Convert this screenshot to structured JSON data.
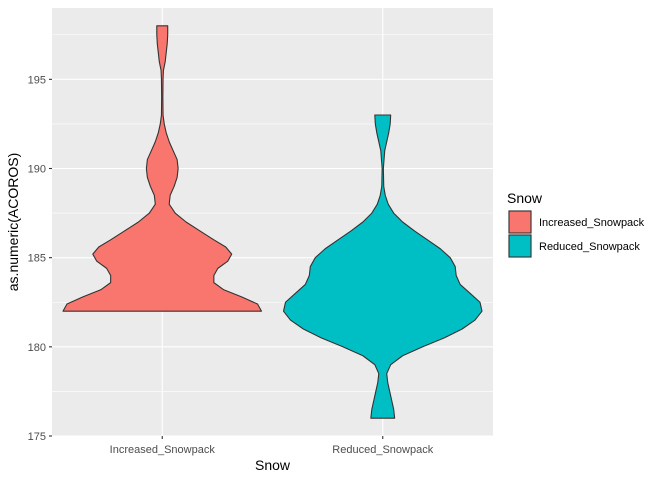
{
  "chart_data": {
    "type": "violin",
    "xlabel": "Snow",
    "ylabel": "as.numeric(ACOROS)",
    "ylim": [
      175,
      199
    ],
    "y_ticks": [
      175,
      180,
      185,
      190,
      195
    ],
    "y_tick_labels": [
      "175",
      "180",
      "185",
      "190",
      "195"
    ],
    "categories": [
      "Increased_Snowpack",
      "Reduced_Snowpack"
    ],
    "grid": true,
    "legend": {
      "title": "Snow",
      "position": "right",
      "entries": [
        "Increased_Snowpack",
        "Reduced_Snowpack"
      ]
    },
    "colors": {
      "Increased_Snowpack": "#F8766D",
      "Reduced_Snowpack": "#00BFC4",
      "panel": "#EBEBEB",
      "grid": "#FFFFFF"
    },
    "series": [
      {
        "category": "Increased_Snowpack",
        "min": 182,
        "max": 198,
        "profile": [
          [
            182.0,
            1.0
          ],
          [
            182.4,
            0.96
          ],
          [
            182.8,
            0.8
          ],
          [
            183.2,
            0.62
          ],
          [
            183.6,
            0.52
          ],
          [
            184.0,
            0.52
          ],
          [
            184.4,
            0.56
          ],
          [
            184.8,
            0.66
          ],
          [
            185.2,
            0.7
          ],
          [
            185.6,
            0.64
          ],
          [
            186.0,
            0.52
          ],
          [
            186.5,
            0.38
          ],
          [
            187.0,
            0.24
          ],
          [
            187.5,
            0.13
          ],
          [
            188.0,
            0.07
          ],
          [
            188.5,
            0.08
          ],
          [
            189.0,
            0.12
          ],
          [
            189.5,
            0.15
          ],
          [
            190.0,
            0.16
          ],
          [
            190.5,
            0.15
          ],
          [
            191.0,
            0.11
          ],
          [
            191.5,
            0.07
          ],
          [
            192.0,
            0.04
          ],
          [
            192.5,
            0.02
          ],
          [
            193.0,
            0.008
          ],
          [
            194.0,
            0.006
          ],
          [
            195.0,
            0.008
          ],
          [
            195.5,
            0.012
          ],
          [
            196.0,
            0.03
          ],
          [
            196.5,
            0.04
          ],
          [
            197.0,
            0.05
          ],
          [
            197.5,
            0.055
          ],
          [
            198.0,
            0.055
          ]
        ]
      },
      {
        "category": "Reduced_Snowpack",
        "min": 176,
        "max": 193,
        "profile": [
          [
            176.0,
            0.12
          ],
          [
            176.5,
            0.11
          ],
          [
            177.0,
            0.09
          ],
          [
            177.5,
            0.07
          ],
          [
            178.0,
            0.05
          ],
          [
            178.5,
            0.04
          ],
          [
            179.0,
            0.08
          ],
          [
            179.5,
            0.2
          ],
          [
            180.0,
            0.4
          ],
          [
            180.5,
            0.62
          ],
          [
            181.0,
            0.8
          ],
          [
            181.5,
            0.93
          ],
          [
            182.0,
            1.0
          ],
          [
            182.5,
            0.98
          ],
          [
            183.0,
            0.88
          ],
          [
            183.5,
            0.78
          ],
          [
            184.0,
            0.74
          ],
          [
            184.5,
            0.73
          ],
          [
            185.0,
            0.68
          ],
          [
            185.5,
            0.58
          ],
          [
            186.0,
            0.45
          ],
          [
            186.5,
            0.32
          ],
          [
            187.0,
            0.2
          ],
          [
            187.5,
            0.11
          ],
          [
            188.0,
            0.055
          ],
          [
            188.5,
            0.025
          ],
          [
            189.0,
            0.01
          ],
          [
            190.0,
            0.006
          ],
          [
            191.0,
            0.02
          ],
          [
            191.5,
            0.04
          ],
          [
            192.0,
            0.06
          ],
          [
            192.5,
            0.075
          ],
          [
            193.0,
            0.08
          ]
        ]
      }
    ]
  }
}
